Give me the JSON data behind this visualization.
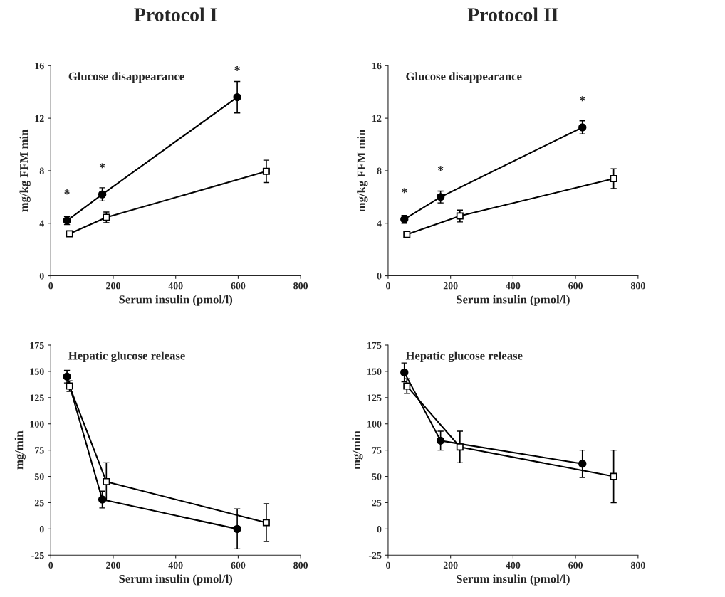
{
  "chart_data": [
    {
      "type": "line",
      "title": "Protocol I",
      "ylabel": "mg/kg FFM min",
      "xlabel": "Serum insulin (pmol/l)",
      "xlim": [
        0,
        800
      ],
      "xticks": [
        0,
        200,
        400,
        600,
        800
      ],
      "ylim": [
        0,
        16
      ],
      "yticks": [
        0,
        4,
        8,
        12,
        16
      ],
      "grid": false,
      "legend": false,
      "annotations": [
        "Glucose disappearance",
        {
          "text": "*",
          "x": 52,
          "y": 4.2
        },
        {
          "text": "*",
          "x": 165,
          "y": 6.2
        },
        {
          "text": "*",
          "x": 597,
          "y": 13.6
        }
      ],
      "series": [
        {
          "color": "#000000",
          "marker": "circle",
          "x": [
            52,
            165,
            597
          ],
          "values": [
            4.2,
            6.2,
            13.6
          ],
          "errors": [
            0.3,
            0.5,
            1.2
          ]
        },
        {
          "color": "#000000",
          "marker": "square",
          "x": [
            60,
            178,
            690
          ],
          "values": [
            3.2,
            4.45,
            7.95
          ],
          "errors": [
            null,
            0.4,
            0.85
          ]
        }
      ]
    },
    {
      "type": "line",
      "title": "Protocol II",
      "ylabel": "mg/kg FFM min",
      "xlabel": "Serum insulin (pmol/l)",
      "xlim": [
        0,
        800
      ],
      "xticks": [
        0,
        200,
        400,
        600,
        800
      ],
      "ylim": [
        0,
        16
      ],
      "yticks": [
        0,
        4,
        8,
        12,
        16
      ],
      "grid": false,
      "legend": false,
      "annotations": [
        "Glucose disappearance",
        {
          "text": "*",
          "x": 52,
          "y": 4.3
        },
        {
          "text": "*",
          "x": 168,
          "y": 6.0
        },
        {
          "text": "*",
          "x": 622,
          "y": 11.3
        }
      ],
      "series": [
        {
          "color": "#000000",
          "marker": "circle",
          "x": [
            52,
            168,
            622
          ],
          "values": [
            4.3,
            6.0,
            11.3
          ],
          "errors": [
            0.3,
            0.45,
            0.5
          ]
        },
        {
          "color": "#000000",
          "marker": "square",
          "x": [
            60,
            230,
            722
          ],
          "values": [
            3.15,
            4.55,
            7.4
          ],
          "errors": [
            null,
            0.45,
            0.75
          ]
        }
      ]
    },
    {
      "type": "line",
      "ylabel": "mg/min",
      "xlabel": "Serum insulin (pmol/l)",
      "xlim": [
        0,
        800
      ],
      "xticks": [
        0,
        200,
        400,
        600,
        800
      ],
      "ylim": [
        -25,
        175
      ],
      "yticks": [
        -25,
        0,
        25,
        50,
        75,
        100,
        125,
        150,
        175
      ],
      "grid": false,
      "legend": false,
      "annotations": [
        "Hepatic glucose release"
      ],
      "series": [
        {
          "color": "#000000",
          "marker": "circle",
          "x": [
            52,
            165,
            597
          ],
          "values": [
            145,
            28,
            0
          ],
          "errors": [
            6,
            8,
            19
          ]
        },
        {
          "color": "#000000",
          "marker": "square",
          "x": [
            60,
            178,
            690
          ],
          "values": [
            136,
            45,
            6
          ],
          "errors": [
            5,
            18,
            18
          ]
        }
      ]
    },
    {
      "type": "line",
      "ylabel": "mg/min",
      "xlabel": "Serum insulin (pmol/l)",
      "xlim": [
        0,
        800
      ],
      "xticks": [
        0,
        200,
        400,
        600,
        800
      ],
      "ylim": [
        -25,
        175
      ],
      "yticks": [
        -25,
        0,
        25,
        50,
        75,
        100,
        125,
        150,
        175
      ],
      "grid": false,
      "legend": false,
      "annotations": [
        "Hepatic glucose release"
      ],
      "series": [
        {
          "color": "#000000",
          "marker": "circle",
          "x": [
            52,
            168,
            622
          ],
          "values": [
            149,
            84,
            62
          ],
          "errors": [
            9,
            9,
            13
          ]
        },
        {
          "color": "#000000",
          "marker": "square",
          "x": [
            60,
            230,
            722
          ],
          "values": [
            136,
            78,
            50
          ],
          "errors": [
            7,
            15,
            25
          ]
        }
      ]
    }
  ]
}
